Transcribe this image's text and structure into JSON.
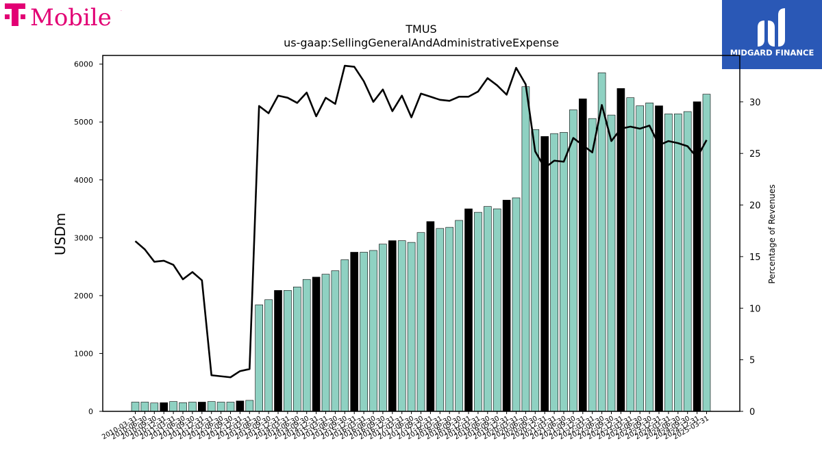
{
  "brand": {
    "name": "T Mobile",
    "color": "#e20074"
  },
  "partner": {
    "name": "MIDGARD FINANCE",
    "bg": "#2a58b6"
  },
  "chart_data": {
    "type": "bar",
    "title": "TMUS",
    "subtitle": "us-gaap:SellingGeneralAndAdministrativeExpense",
    "ylabel": "USDm",
    "y2label": "Percentage of Revenues",
    "ylim": [
      0,
      6150
    ],
    "y2lim": [
      0,
      34.5
    ],
    "yticks": [
      0,
      1000,
      2000,
      3000,
      4000,
      5000,
      6000
    ],
    "y2ticks": [
      0,
      5,
      10,
      15,
      20,
      25,
      30
    ],
    "bar_color": "#8fd1c2",
    "highlight_color": "#000000",
    "categories": [
      "2010-03-31",
      "2010-06-30",
      "2010-09-30",
      "2010-12-31",
      "2011-03-31",
      "2011-06-30",
      "2011-09-30",
      "2011-12-31",
      "2012-03-31",
      "2012-06-30",
      "2012-09-30",
      "2012-12-31",
      "2013-03-31",
      "2013-06-30",
      "2013-09-30",
      "2013-12-31",
      "2014-03-31",
      "2014-06-30",
      "2014-09-30",
      "2014-12-31",
      "2015-03-31",
      "2015-06-30",
      "2015-09-30",
      "2015-12-31",
      "2016-03-31",
      "2016-06-30",
      "2016-09-30",
      "2016-12-31",
      "2017-03-31",
      "2017-06-30",
      "2017-09-30",
      "2017-12-31",
      "2018-03-31",
      "2018-06-30",
      "2018-09-30",
      "2018-12-31",
      "2019-03-31",
      "2019-06-30",
      "2019-09-30",
      "2019-12-31",
      "2020-03-31",
      "2020-06-30",
      "2020-09-30",
      "2020-12-31",
      "2021-03-31",
      "2021-06-30",
      "2021-09-30",
      "2021-12-31",
      "2022-03-31",
      "2022-06-30",
      "2022-09-30",
      "2022-12-31",
      "2023-03-31",
      "2023-06-30",
      "2023-09-30",
      "2023-12-31",
      "2024-03-31",
      "2024-06-30",
      "2024-09-30",
      "2024-12-31",
      "2025-03-31"
    ],
    "tick_labels": [
      "2010-03-31",
      "2010-06-30",
      "2010-09-30",
      "2010-12-31",
      "2011-03-31",
      "2011-06-30",
      "2011-09-30",
      "2011-12-31",
      "2012-03-31",
      "2012-06-30",
      "2012-09-30",
      "2012-12-31",
      "2013-03-31",
      "2013-06-30",
      "2013-09-30",
      "2013-12-31",
      "2014-03-31",
      "2014-06-30",
      "2014-09-30",
      "2014-12-31",
      "2015-03-31",
      "2015-06-30",
      "2015-09-30",
      "2015-12-31",
      "2016-03-31",
      "2016-06-30",
      "2016-09-30",
      "2016-12-31",
      "2017-03-31",
      "2017-06-30",
      "2017-09-30",
      "2017-12-31",
      "2018-03-31",
      "2018-06-30",
      "2018-09-30",
      "2018-12-31",
      "2019-03-31",
      "2019-06-30",
      "2019-09-30",
      "2019-12-31",
      "2020-03-31",
      "2020-06-30",
      "2020-09-30",
      "2020-12-31",
      "2021-03-31",
      "2021-06-30",
      "2021-09-30",
      "2021-12-31",
      "2022-03-31",
      "2022-06-30",
      "2022-09-30",
      "2022-12-31",
      "2023-03-31",
      "2023-06-30",
      "2023-09-30",
      "2023-12-31",
      "2024-03-31",
      "2024-06-30",
      "2024-09-30",
      "2024-12-31",
      "2025-03-31"
    ],
    "series": [
      {
        "kind": "bar",
        "values": [
          160,
          160,
          145,
          150,
          170,
          150,
          160,
          160,
          170,
          160,
          160,
          180,
          190,
          1840,
          1930,
          2090,
          2090,
          2150,
          2280,
          2320,
          2370,
          2430,
          2620,
          2750,
          2750,
          2780,
          2890,
          2950,
          2950,
          2920,
          3090,
          3280,
          3160,
          3180,
          3300,
          3500,
          3440,
          3540,
          3500,
          3650,
          3690,
          5610,
          4870,
          4750,
          4800,
          4820,
          5210,
          5400,
          5060,
          5850,
          5120,
          5580,
          5420,
          5280,
          5330,
          5280,
          5140,
          5140,
          5180,
          5350,
          5480
        ],
        "highlight": [
          false,
          false,
          false,
          true,
          false,
          false,
          false,
          true,
          false,
          false,
          false,
          true,
          false,
          false,
          false,
          true,
          false,
          false,
          false,
          true,
          false,
          false,
          false,
          true,
          false,
          false,
          false,
          true,
          false,
          false,
          false,
          true,
          false,
          false,
          false,
          true,
          false,
          false,
          false,
          true,
          false,
          false,
          false,
          true,
          false,
          false,
          false,
          true,
          false,
          false,
          false,
          true,
          false,
          false,
          false,
          true,
          false,
          false,
          false,
          true,
          false
        ]
      },
      {
        "kind": "line",
        "axis": "right",
        "color": "#000000",
        "values": [
          16.5,
          15.7,
          14.5,
          14.6,
          14.2,
          12.8,
          13.5,
          12.7,
          3.5,
          3.4,
          3.3,
          3.9,
          4.1,
          29.6,
          28.9,
          30.6,
          30.4,
          29.9,
          30.9,
          28.6,
          30.4,
          29.8,
          33.5,
          33.4,
          32.0,
          30.0,
          31.2,
          29.1,
          30.6,
          28.5,
          30.8,
          30.5,
          30.2,
          30.1,
          30.5,
          30.5,
          31.0,
          32.3,
          31.6,
          30.7,
          33.3,
          31.7,
          25.2,
          23.6,
          24.3,
          24.2,
          26.5,
          25.8,
          25.1,
          29.7,
          26.2,
          27.4,
          27.6,
          27.4,
          27.7,
          25.8,
          26.2,
          26.0,
          25.7,
          24.6,
          26.3
        ]
      }
    ]
  }
}
